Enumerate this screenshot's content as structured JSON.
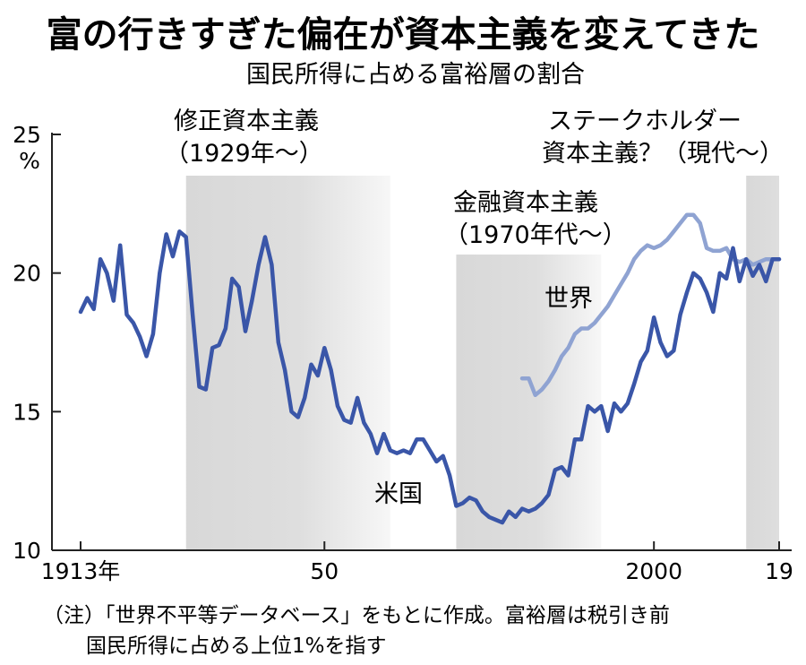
{
  "chart_data": {
    "type": "line",
    "title": "富の行きすぎた偏在が資本主義を変えてきた",
    "subtitle": "国民所得に占める富裕層の割合",
    "ylabel": "%",
    "ylim": [
      10,
      25
    ],
    "xlim": [
      1913,
      2019
    ],
    "yticks": [
      "25",
      "20",
      "15",
      "10"
    ],
    "yticks_values": [
      25,
      20,
      15,
      10
    ],
    "xticks": [
      {
        "value": 1913,
        "label": "1913年"
      },
      {
        "value": 1950,
        "label": "50"
      },
      {
        "value": 2000,
        "label": "2000"
      },
      {
        "value": 2019,
        "label": "19"
      }
    ],
    "eras": [
      {
        "label1": "修正資本主義",
        "label2": "（1929年～）",
        "start": 1929,
        "end": 1960
      },
      {
        "label1": "金融資本主義",
        "label2": "（1970年代～）",
        "start": 1970,
        "end": 1992
      },
      {
        "label1": "ステークホルダー",
        "label2": "資本主義？（現代～）",
        "start": 2014,
        "end": 2019
      }
    ],
    "series": [
      {
        "name": "米国",
        "color": "#3a56a8",
        "x": [
          1913,
          1914,
          1915,
          1916,
          1917,
          1918,
          1919,
          1920,
          1921,
          1922,
          1923,
          1924,
          1925,
          1926,
          1927,
          1928,
          1929,
          1930,
          1931,
          1932,
          1933,
          1934,
          1935,
          1936,
          1937,
          1938,
          1939,
          1940,
          1941,
          1942,
          1943,
          1944,
          1945,
          1946,
          1947,
          1948,
          1949,
          1950,
          1951,
          1952,
          1953,
          1954,
          1955,
          1956,
          1957,
          1958,
          1959,
          1960,
          1961,
          1962,
          1963,
          1964,
          1965,
          1966,
          1967,
          1968,
          1969,
          1970,
          1971,
          1972,
          1973,
          1974,
          1975,
          1976,
          1977,
          1978,
          1979,
          1980,
          1981,
          1982,
          1983,
          1984,
          1985,
          1986,
          1987,
          1988,
          1989,
          1990,
          1991,
          1992,
          1993,
          1994,
          1995,
          1996,
          1997,
          1998,
          1999,
          2000,
          2001,
          2002,
          2003,
          2004,
          2005,
          2006,
          2007,
          2008,
          2009,
          2010,
          2011,
          2012,
          2013,
          2014,
          2015,
          2016,
          2017,
          2018,
          2019
        ],
        "values": [
          18.6,
          19.1,
          18.7,
          20.5,
          20.0,
          19.0,
          21.0,
          18.5,
          18.2,
          17.7,
          17.0,
          17.8,
          20.0,
          21.4,
          20.6,
          21.5,
          21.3,
          18.5,
          15.9,
          15.8,
          17.3,
          17.4,
          18.0,
          19.8,
          19.5,
          17.9,
          19.0,
          20.3,
          21.3,
          20.3,
          17.5,
          16.5,
          15.0,
          14.8,
          15.5,
          16.7,
          16.3,
          17.3,
          16.5,
          15.2,
          14.7,
          14.6,
          15.5,
          14.6,
          14.2,
          13.5,
          14.2,
          13.6,
          13.5,
          13.6,
          13.5,
          14.0,
          14.0,
          13.6,
          13.2,
          13.4,
          12.7,
          11.6,
          11.7,
          11.9,
          11.8,
          11.4,
          11.2,
          11.1,
          11.0,
          11.4,
          11.2,
          11.5,
          11.4,
          11.5,
          11.7,
          12.0,
          12.9,
          13.0,
          12.7,
          14.0,
          14.0,
          15.2,
          15.0,
          15.2,
          14.3,
          15.3,
          15.0,
          15.3,
          16.0,
          16.8,
          17.2,
          18.4,
          17.5,
          17.0,
          17.2,
          18.5,
          19.3,
          20.0,
          19.8,
          19.3,
          18.6,
          20.0,
          19.8,
          20.9,
          19.7,
          20.5,
          19.9,
          20.3,
          19.7,
          20.5,
          20.5
        ]
      },
      {
        "name": "世界",
        "color": "#8fa3d2",
        "x": [
          1980,
          1981,
          1982,
          1983,
          1984,
          1985,
          1986,
          1987,
          1988,
          1989,
          1990,
          1991,
          1992,
          1993,
          1994,
          1995,
          1996,
          1997,
          1998,
          1999,
          2000,
          2001,
          2002,
          2003,
          2004,
          2005,
          2006,
          2007,
          2008,
          2009,
          2010,
          2011,
          2012,
          2013,
          2014,
          2015,
          2016,
          2017,
          2018,
          2019
        ],
        "values": [
          16.2,
          16.2,
          15.6,
          15.8,
          16.1,
          16.5,
          17.0,
          17.3,
          17.8,
          18.0,
          18.0,
          18.2,
          18.5,
          18.8,
          19.2,
          19.6,
          20.0,
          20.5,
          20.8,
          21.0,
          20.9,
          21.0,
          21.2,
          21.5,
          21.8,
          22.1,
          22.1,
          21.8,
          20.9,
          20.8,
          20.8,
          20.9,
          20.5,
          20.4,
          20.5,
          20.3,
          20.4,
          20.5,
          20.5,
          20.5
        ]
      }
    ],
    "note_line1": "（注）「世界不平等データベース」をもとに作成。富裕層は税引き前",
    "note_line2": "国民所得に占める上位1%を指す"
  }
}
